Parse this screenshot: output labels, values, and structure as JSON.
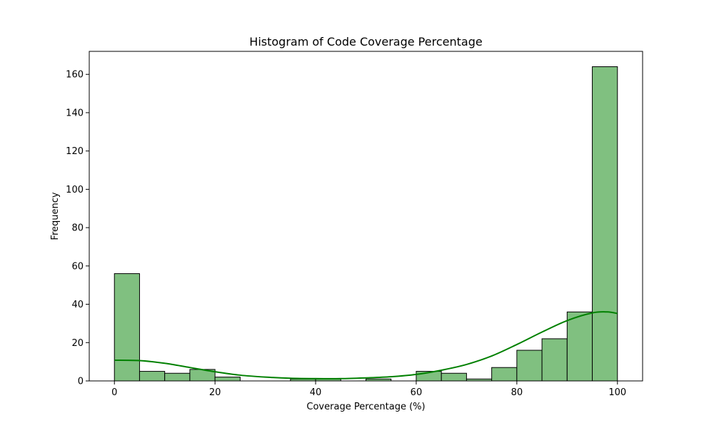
{
  "chart_data": {
    "type": "bar",
    "title": "Histogram of Code Coverage Percentage",
    "xlabel": "Coverage Percentage (%)",
    "ylabel": "Frequency",
    "xlim": [
      -5,
      105
    ],
    "ylim": [
      0,
      172
    ],
    "xticks": [
      0,
      20,
      40,
      60,
      80,
      100
    ],
    "yticks": [
      0,
      20,
      40,
      60,
      80,
      100,
      120,
      140,
      160
    ],
    "bin_width": 5,
    "bins": [
      {
        "start": 0,
        "end": 5,
        "count": 56
      },
      {
        "start": 5,
        "end": 10,
        "count": 5
      },
      {
        "start": 10,
        "end": 15,
        "count": 4
      },
      {
        "start": 15,
        "end": 20,
        "count": 6
      },
      {
        "start": 20,
        "end": 25,
        "count": 2
      },
      {
        "start": 25,
        "end": 30,
        "count": 0
      },
      {
        "start": 30,
        "end": 35,
        "count": 0
      },
      {
        "start": 35,
        "end": 40,
        "count": 1
      },
      {
        "start": 40,
        "end": 45,
        "count": 1
      },
      {
        "start": 45,
        "end": 50,
        "count": 0
      },
      {
        "start": 50,
        "end": 55,
        "count": 1
      },
      {
        "start": 55,
        "end": 60,
        "count": 0
      },
      {
        "start": 60,
        "end": 65,
        "count": 5
      },
      {
        "start": 65,
        "end": 70,
        "count": 4
      },
      {
        "start": 70,
        "end": 75,
        "count": 1
      },
      {
        "start": 75,
        "end": 80,
        "count": 7
      },
      {
        "start": 80,
        "end": 85,
        "count": 16
      },
      {
        "start": 85,
        "end": 90,
        "count": 22
      },
      {
        "start": 90,
        "end": 95,
        "count": 36
      },
      {
        "start": 95,
        "end": 100,
        "count": 164
      }
    ],
    "kde": {
      "x": [
        0,
        5,
        10,
        15,
        20,
        25,
        30,
        35,
        40,
        45,
        50,
        55,
        60,
        65,
        70,
        75,
        80,
        85,
        90,
        95,
        98,
        100
      ],
      "y": [
        10.8,
        10.6,
        9.2,
        7.0,
        4.8,
        3.0,
        2.0,
        1.4,
        1.2,
        1.2,
        1.6,
        2.2,
        3.4,
        5.6,
        8.6,
        13.0,
        19.0,
        25.5,
        31.5,
        35.5,
        36.0,
        35.2
      ]
    },
    "colors": {
      "bar_fill": "#80c080",
      "bar_edge": "#000000",
      "kde_line": "#008000"
    },
    "grid": false
  }
}
